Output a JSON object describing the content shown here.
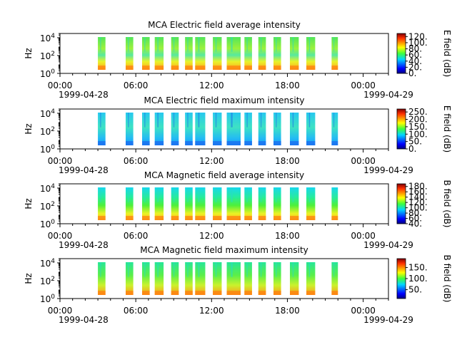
{
  "figure": {
    "background": "#ffffff"
  },
  "x_axis": {
    "ticks": [
      "00:00",
      "06:00",
      "12:00",
      "18:00",
      "00:00"
    ],
    "start_label": "1999-04-28",
    "end_label": "1999-04-29"
  },
  "chart_data": [
    {
      "type": "heatmap",
      "title": "MCA  Electric field average intensity",
      "ylabel": "Hz",
      "y_scale": "log",
      "y_ticks": [
        "10^0",
        "10^2",
        "10^4"
      ],
      "ylim": [
        1,
        30000
      ],
      "xlim": [
        "1999-04-28 00:00",
        "1999-04-29 02:00"
      ],
      "colorbar": {
        "label": "E field (dB)",
        "ticks": [
          "0.",
          "20.",
          "40.",
          "60.",
          "80.",
          "100.",
          "120."
        ],
        "range": [
          0,
          130
        ]
      },
      "data_hours": [
        [
          3.0,
          3.6
        ],
        [
          5.2,
          5.8
        ],
        [
          6.5,
          7.1
        ],
        [
          7.5,
          8.2
        ],
        [
          8.8,
          9.4
        ],
        [
          9.9,
          10.5
        ],
        [
          10.7,
          11.5
        ],
        [
          12.1,
          12.8
        ],
        [
          13.2,
          14.3
        ],
        [
          14.6,
          15.2
        ],
        [
          15.7,
          16.3
        ],
        [
          16.9,
          17.5
        ],
        [
          18.2,
          18.9
        ],
        [
          19.5,
          20.2
        ],
        [
          21.5,
          22.0
        ]
      ]
    },
    {
      "type": "heatmap",
      "title": "MCA  Electric field maximum intensity",
      "ylabel": "Hz",
      "y_scale": "log",
      "y_ticks": [
        "10^0",
        "10^2",
        "10^4"
      ],
      "ylim": [
        1,
        30000
      ],
      "xlim": [
        "1999-04-28 00:00",
        "1999-04-29 02:00"
      ],
      "colorbar": {
        "label": "E field (dB)",
        "ticks": [
          "0.",
          "50.",
          "100.",
          "150.",
          "200.",
          "250."
        ],
        "range": [
          0,
          270
        ]
      },
      "data_hours": [
        [
          3.0,
          3.6
        ],
        [
          5.2,
          5.8
        ],
        [
          6.5,
          7.1
        ],
        [
          7.5,
          8.2
        ],
        [
          8.8,
          9.4
        ],
        [
          9.9,
          10.5
        ],
        [
          10.7,
          11.5
        ],
        [
          12.1,
          12.8
        ],
        [
          13.2,
          14.3
        ],
        [
          14.6,
          15.2
        ],
        [
          15.7,
          16.3
        ],
        [
          16.9,
          17.5
        ],
        [
          18.2,
          18.9
        ],
        [
          19.5,
          20.2
        ],
        [
          21.5,
          22.0
        ]
      ]
    },
    {
      "type": "heatmap",
      "title": "MCA  Magnetic field average intensity",
      "ylabel": "Hz",
      "y_scale": "log",
      "y_ticks": [
        "10^0",
        "10^2",
        "10^4"
      ],
      "ylim": [
        1,
        30000
      ],
      "xlim": [
        "1999-04-28 00:00",
        "1999-04-29 02:00"
      ],
      "colorbar": {
        "label": "B field (dB)",
        "ticks": [
          "40.",
          "60.",
          "80.",
          "100.",
          "120.",
          "140.",
          "160.",
          "180."
        ],
        "range": [
          40,
          190
        ]
      },
      "data_hours": [
        [
          3.0,
          3.6
        ],
        [
          5.2,
          5.8
        ],
        [
          6.5,
          7.1
        ],
        [
          7.5,
          8.2
        ],
        [
          8.8,
          9.4
        ],
        [
          9.9,
          10.5
        ],
        [
          10.7,
          11.5
        ],
        [
          12.1,
          12.8
        ],
        [
          13.2,
          14.3
        ],
        [
          14.6,
          15.2
        ],
        [
          15.7,
          16.3
        ],
        [
          16.9,
          17.5
        ],
        [
          18.2,
          18.9
        ],
        [
          19.5,
          20.2
        ],
        [
          21.5,
          22.0
        ]
      ]
    },
    {
      "type": "heatmap",
      "title": "MCA  Magnetic field maximum intensity",
      "ylabel": "Hz",
      "y_scale": "log",
      "y_ticks": [
        "10^0",
        "10^2",
        "10^4"
      ],
      "ylim": [
        1,
        30000
      ],
      "xlim": [
        "1999-04-28 00:00",
        "1999-04-29 02:00"
      ],
      "colorbar": {
        "label": "B field (dB)",
        "ticks": [
          "50.",
          "100.",
          "150."
        ],
        "range": [
          10,
          190
        ]
      },
      "data_hours": [
        [
          3.0,
          3.6
        ],
        [
          5.2,
          5.8
        ],
        [
          6.5,
          7.1
        ],
        [
          7.5,
          8.2
        ],
        [
          8.8,
          9.4
        ],
        [
          9.9,
          10.5
        ],
        [
          10.7,
          11.5
        ],
        [
          12.1,
          12.8
        ],
        [
          13.2,
          14.3
        ],
        [
          14.6,
          15.2
        ],
        [
          15.7,
          16.3
        ],
        [
          16.9,
          17.5
        ],
        [
          18.2,
          18.9
        ],
        [
          19.5,
          20.2
        ],
        [
          21.5,
          22.0
        ]
      ]
    }
  ]
}
